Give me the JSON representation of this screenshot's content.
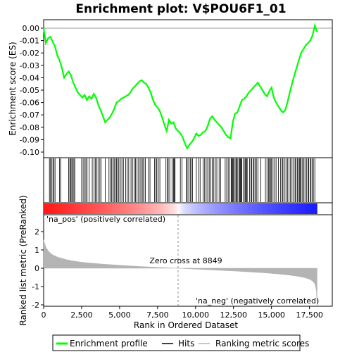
{
  "chart_data": {
    "type": "line",
    "title": "Enrichment plot: V$POU6F1_01",
    "panels": {
      "enrichment": {
        "ylabel": "Enrichment score (ES)",
        "ylim": [
          -0.105,
          0.005
        ],
        "yticks": [
          "0.00",
          "-0.01",
          "-0.02",
          "-0.03",
          "-0.04",
          "-0.05",
          "-0.06",
          "-0.07",
          "-0.08",
          "-0.09",
          "-0.10"
        ],
        "series": [
          {
            "name": "Enrichment profile",
            "color": "#00ff00",
            "x": [
              0,
              150,
              300,
              450,
              600,
              750,
              900,
              1050,
              1200,
              1350,
              1500,
              1650,
              1800,
              1950,
              2100,
              2250,
              2400,
              2550,
              2700,
              2850,
              3000,
              3150,
              3300,
              3450,
              3600,
              3750,
              3900,
              4050,
              4200,
              4350,
              4500,
              4650,
              4800,
              4950,
              5100,
              5250,
              5400,
              5550,
              5700,
              5850,
              6000,
              6150,
              6300,
              6450,
              6600,
              6750,
              6900,
              7050,
              7200,
              7350,
              7500,
              7650,
              7800,
              7950,
              8100,
              8250,
              8400,
              8550,
              8700,
              8850,
              9000,
              9150,
              9300,
              9450,
              9600,
              9750,
              9900,
              10050,
              10200,
              10350,
              10500,
              10650,
              10800,
              10950,
              11100,
              11250,
              11400,
              11550,
              11700,
              11850,
              12000,
              12150,
              12300,
              12450,
              12600,
              12750,
              12900,
              13050,
              13200,
              13350,
              13500,
              13650,
              13800,
              13950,
              14100,
              14250,
              14400,
              14550,
              14700,
              14850,
              15000,
              15150,
              15300,
              15450,
              15600,
              15750,
              15900,
              16050,
              16200,
              16350,
              16500,
              16650,
              16800,
              16950,
              17100,
              17250,
              17400,
              17550,
              17700,
              17850,
              18000
            ],
            "y": [
              0.0,
              -0.012,
              -0.008,
              -0.007,
              -0.011,
              -0.015,
              -0.022,
              -0.026,
              -0.032,
              -0.04,
              -0.037,
              -0.035,
              -0.038,
              -0.044,
              -0.048,
              -0.052,
              -0.054,
              -0.056,
              -0.054,
              -0.058,
              -0.055,
              -0.057,
              -0.053,
              -0.056,
              -0.062,
              -0.066,
              -0.071,
              -0.076,
              -0.074,
              -0.072,
              -0.069,
              -0.065,
              -0.06,
              -0.059,
              -0.057,
              -0.056,
              -0.055,
              -0.054,
              -0.052,
              -0.049,
              -0.047,
              -0.045,
              -0.043,
              -0.042,
              -0.044,
              -0.045,
              -0.048,
              -0.052,
              -0.058,
              -0.062,
              -0.064,
              -0.067,
              -0.072,
              -0.078,
              -0.083,
              -0.074,
              -0.077,
              -0.076,
              -0.081,
              -0.083,
              -0.085,
              -0.088,
              -0.093,
              -0.097,
              -0.094,
              -0.092,
              -0.089,
              -0.085,
              -0.087,
              -0.086,
              -0.084,
              -0.083,
              -0.079,
              -0.073,
              -0.071,
              -0.074,
              -0.076,
              -0.078,
              -0.08,
              -0.083,
              -0.086,
              -0.088,
              -0.089,
              -0.076,
              -0.069,
              -0.068,
              -0.063,
              -0.058,
              -0.057,
              -0.055,
              -0.052,
              -0.05,
              -0.048,
              -0.046,
              -0.044,
              -0.047,
              -0.05,
              -0.053,
              -0.055,
              -0.051,
              -0.048,
              -0.056,
              -0.06,
              -0.063,
              -0.066,
              -0.068,
              -0.066,
              -0.06,
              -0.052,
              -0.045,
              -0.038,
              -0.032,
              -0.026,
              -0.02,
              -0.017,
              -0.014,
              -0.012,
              -0.01,
              -0.006,
              0.002,
              -0.003
            ]
          }
        ]
      },
      "ranked_metric": {
        "ylabel": "Ranked list metric (PreRanked)",
        "xlabel": "Rank in Ordered Dataset",
        "ylim": [
          -2,
          3
        ],
        "yticks": [
          "2",
          "1",
          "0",
          "-1",
          "-2"
        ],
        "xlim": [
          0,
          19000
        ],
        "xticks": [
          "0",
          "2,500",
          "5,000",
          "7,500",
          "10,000",
          "12,500",
          "15,000",
          "17,500"
        ],
        "series": [
          {
            "name": "Ranking metric scores",
            "color": "#b4b4b4",
            "x": [
              0,
              50,
              150,
              300,
              500,
              750,
              1000,
              1500,
              2000,
              2500,
              3000,
              4000,
              5000,
              6000,
              7000,
              8000,
              8849,
              9500,
              10500,
              11500,
              12500,
              13500,
              14500,
              15500,
              16200,
              16800,
              17200,
              17500,
              17700,
              17850,
              17950,
              18000
            ],
            "y": [
              1.55,
              1.4,
              1.15,
              0.95,
              0.78,
              0.67,
              0.58,
              0.47,
              0.39,
              0.33,
              0.29,
              0.22,
              0.16,
              0.11,
              0.07,
              0.03,
              0.0,
              -0.03,
              -0.07,
              -0.11,
              -0.15,
              -0.2,
              -0.25,
              -0.32,
              -0.38,
              -0.45,
              -0.52,
              -0.6,
              -0.7,
              -0.85,
              -1.2,
              -1.9
            ]
          }
        ],
        "annotations": {
          "pos_label": "'na_pos' (positively correlated)",
          "neg_label": "'na_neg' (negatively correlated)",
          "zero_cross": "Zero cross at 8849",
          "zero_cross_rank": 8849
        }
      }
    },
    "hits": [
      380,
      450,
      520,
      610,
      680,
      750,
      1050,
      1120,
      1650,
      1720,
      1780,
      1850,
      1920,
      1990,
      2050,
      2500,
      2600,
      2700,
      2780,
      2860,
      3000,
      3200,
      3320,
      3400,
      3500,
      3580,
      3700,
      3780,
      4050,
      4300,
      4400,
      4480,
      4560,
      4640,
      4700,
      4800,
      4880,
      4950,
      5050,
      5150,
      5250,
      5400,
      5500,
      5600,
      5750,
      5850,
      5950,
      6050,
      6150,
      6250,
      6350,
      6450,
      6530,
      6600,
      6700,
      6900,
      7000,
      7300,
      7400,
      7450,
      7550,
      7650,
      8050,
      8150,
      8200,
      8300,
      8450,
      8550,
      8600,
      8650,
      9000,
      9100,
      9400,
      9450,
      9550,
      9650,
      9700,
      9800,
      10050,
      10200,
      10300,
      10500,
      10600,
      10700,
      10800,
      10900,
      11000,
      11100,
      11200,
      11300,
      11400,
      11550,
      11650,
      11950,
      12050,
      12150,
      12250,
      12350,
      12400,
      12450,
      12500,
      12550,
      12650,
      12700,
      12750,
      12850,
      12900,
      12950,
      13000,
      13050,
      13150,
      13250,
      13300,
      13350,
      13400,
      13550,
      13650,
      13700,
      13800,
      13850,
      13950,
      14000,
      14100,
      14300,
      14600,
      14700,
      14800,
      14850,
      14950,
      15000,
      15100,
      15200,
      15300,
      15450,
      15600,
      15700,
      15750,
      15850,
      15950,
      16050,
      16150,
      16250,
      16350,
      16450,
      16550,
      16600,
      16700,
      16750,
      16850,
      16900,
      16950,
      17050,
      17100,
      17200,
      17300,
      17400,
      17450,
      17550,
      17600,
      17700,
      17750,
      17850
    ],
    "legend": [
      {
        "label": "Enrichment profile",
        "color": "#00ff00",
        "icon": "green-line-icon"
      },
      {
        "label": "Hits",
        "color": "#000000",
        "icon": "black-line-icon"
      },
      {
        "label": "Ranking metric scores",
        "color": "#b4b4b4",
        "icon": "grey-line-icon"
      }
    ],
    "colors": {
      "profile": "#00ff00",
      "hit": "#000000",
      "metric_fill": "#b4b4b4",
      "pos_text": "#cc0000",
      "neg_text": "#0000cc",
      "heatmap_pos": "#ff0000",
      "heatmap_neg": "#0000ff"
    }
  }
}
